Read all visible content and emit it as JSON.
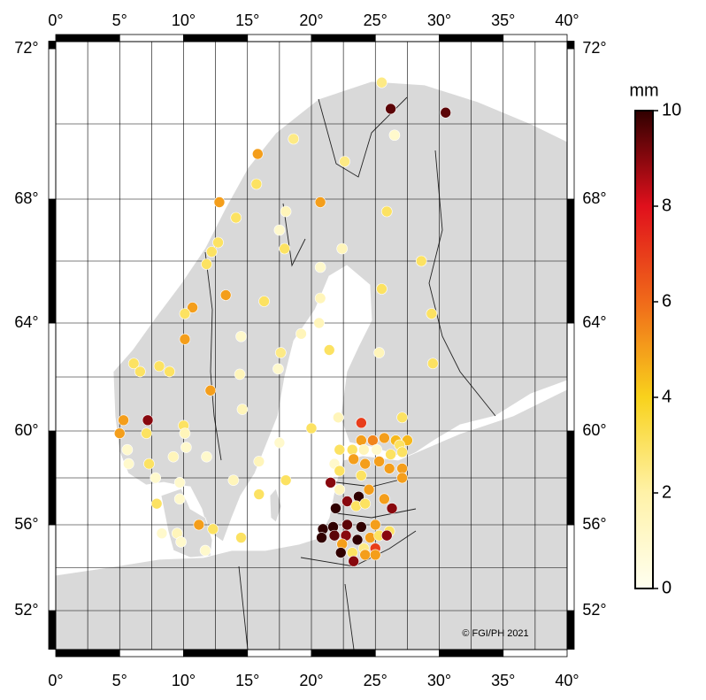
{
  "chart_data": {
    "type": "map",
    "xlim": [
      0,
      40
    ],
    "ylim": [
      50.2,
      72.2
    ],
    "xticks": [
      {
        "value": 0,
        "label": "0°"
      },
      {
        "value": 5,
        "label": "5°"
      },
      {
        "value": 10,
        "label": "10°"
      },
      {
        "value": 15,
        "label": "15°"
      },
      {
        "value": 20,
        "label": "20°"
      },
      {
        "value": 25,
        "label": "25°"
      },
      {
        "value": 30,
        "label": "30°"
      },
      {
        "value": 35,
        "label": "35°"
      },
      {
        "value": 40,
        "label": "40°"
      }
    ],
    "yticks": [
      {
        "value": 52,
        "label": "52°"
      },
      {
        "value": 56,
        "label": "56°"
      },
      {
        "value": 60,
        "label": "60°"
      },
      {
        "value": 64,
        "label": "64°"
      },
      {
        "value": 68,
        "label": "68°"
      },
      {
        "value": 72,
        "label": "72°"
      }
    ],
    "xgrid": [
      2.5,
      5,
      7.5,
      10,
      12.5,
      15,
      17.5,
      20,
      22.5,
      25,
      27.5,
      30,
      32.5,
      35,
      37.5
    ],
    "ygrid": [
      52,
      54,
      56,
      58,
      60,
      62,
      64,
      66,
      68,
      70
    ],
    "colorbar": {
      "label": "mm",
      "lim": [
        0,
        10
      ],
      "ticks": [
        0,
        2,
        4,
        6,
        8,
        10
      ],
      "colors": [
        "#fffff0",
        "#fff2a8",
        "#f8d21c",
        "#f06a1a",
        "#e0101c",
        "#300000"
      ]
    },
    "credit": "© FGI/PH 2021",
    "stations": {
      "lon": [
        25.5,
        26.2,
        30.5,
        26.5,
        18.6,
        15.8,
        22.6,
        15.7,
        12.8,
        20.7,
        18.0,
        14.1,
        25.9,
        17.5,
        12.7,
        22.4,
        17.9,
        12.2,
        11.8,
        28.6,
        20.7,
        13.3,
        25.5,
        16.3,
        20.7,
        10.7,
        10.1,
        29.4,
        20.6,
        19.2,
        14.5,
        10.1,
        21.4,
        25.3,
        17.6,
        6.1,
        8.1,
        6.6,
        8.9,
        14.4,
        29.5,
        17.4,
        12.1,
        14.6,
        22.1,
        27.1,
        23.9,
        5.3,
        7.2,
        10.0,
        20.0,
        5.0,
        7.1,
        10.1,
        23.9,
        24.8,
        25.7,
        26.6,
        27.5,
        26.9,
        17.5,
        10.2,
        5.6,
        22.2,
        23.2,
        24.1,
        25.1,
        26.2,
        27.1,
        9.2,
        11.8,
        23.3,
        24.2,
        25.3,
        5.7,
        15.9,
        21.8,
        7.3,
        26.1,
        27.1,
        22.2,
        7.8,
        27.1,
        23.9,
        18.0,
        13.9,
        21.5,
        9.7,
        22.2,
        24.5,
        15.9,
        9.7,
        25.7,
        7.9,
        23.7,
        22.8,
        26.3,
        21.9,
        23.5,
        24.2,
        11.2,
        20.9,
        21.7,
        22.8,
        23.9,
        25.0,
        26.1,
        12.3,
        8.3,
        9.5,
        20.8,
        21.8,
        22.7,
        23.6,
        24.6,
        25.3,
        25.9,
        14.5,
        9.8,
        22.4,
        24.1,
        25.0,
        11.7,
        22.3,
        23.2,
        24.2,
        25.0,
        23.3
      ],
      "lat": [
        71.1,
        70.4,
        70.3,
        69.7,
        69.6,
        69.2,
        69.0,
        68.4,
        67.9,
        67.9,
        67.6,
        67.4,
        67.6,
        67.0,
        66.6,
        66.4,
        66.4,
        66.3,
        65.9,
        66.0,
        65.8,
        64.9,
        65.1,
        64.7,
        64.8,
        64.5,
        64.3,
        64.3,
        64.0,
        63.6,
        63.5,
        63.4,
        63.0,
        62.9,
        62.9,
        62.5,
        62.4,
        62.2,
        62.2,
        62.1,
        62.5,
        62.3,
        61.5,
        60.8,
        60.5,
        60.5,
        60.3,
        60.4,
        60.4,
        60.2,
        60.1,
        59.9,
        59.9,
        59.9,
        59.6,
        59.6,
        59.7,
        59.6,
        59.6,
        59.4,
        59.5,
        59.3,
        59.2,
        59.2,
        59.2,
        59.2,
        59.2,
        59.0,
        59.1,
        58.9,
        58.9,
        58.8,
        58.6,
        58.7,
        58.6,
        58.7,
        58.6,
        58.6,
        58.4,
        58.4,
        58.3,
        58.0,
        58.0,
        58.1,
        57.9,
        57.9,
        57.8,
        57.8,
        57.5,
        57.5,
        57.3,
        57.1,
        57.1,
        56.9,
        57.2,
        57.0,
        56.7,
        56.7,
        56.8,
        56.9,
        56.0,
        55.8,
        55.9,
        56.0,
        55.9,
        56.0,
        55.7,
        55.8,
        55.6,
        55.6,
        55.4,
        55.5,
        55.5,
        55.3,
        55.4,
        55.5,
        55.5,
        55.4,
        55.2,
        55.1,
        54.9,
        54.9,
        54.8,
        54.7,
        54.7,
        54.6,
        54.6,
        54.3
      ],
      "values": [
        2.5,
        9.5,
        9.5,
        1,
        2.5,
        5,
        2.5,
        3,
        5,
        5,
        1.5,
        3,
        3,
        1,
        3,
        1.5,
        3,
        3,
        3,
        3,
        1,
        5,
        3,
        3,
        1.5,
        5,
        3,
        3,
        1.5,
        1.5,
        1,
        5,
        3,
        1.5,
        2.5,
        3,
        3,
        3,
        3,
        1.5,
        3,
        1,
        5,
        1.5,
        1.5,
        3,
        7,
        5,
        9,
        3,
        3,
        5,
        3,
        1.5,
        5,
        5.5,
        5,
        4.5,
        4.5,
        3,
        1,
        1,
        1,
        3,
        3,
        1.5,
        1,
        3,
        3,
        1.5,
        1,
        5,
        5,
        5,
        1,
        1.5,
        1,
        3,
        5,
        5,
        3,
        1,
        5,
        3,
        3,
        1.5,
        9,
        1,
        1.5,
        5,
        3,
        1,
        5,
        3,
        10,
        9,
        9,
        10,
        3,
        3,
        5,
        10,
        10,
        9.5,
        10,
        5,
        3,
        3,
        1,
        1.5,
        10,
        9.5,
        9,
        10,
        5,
        3,
        9,
        3,
        1,
        5,
        2.5,
        7,
        1,
        10,
        3,
        5,
        5,
        9
      ]
    }
  }
}
